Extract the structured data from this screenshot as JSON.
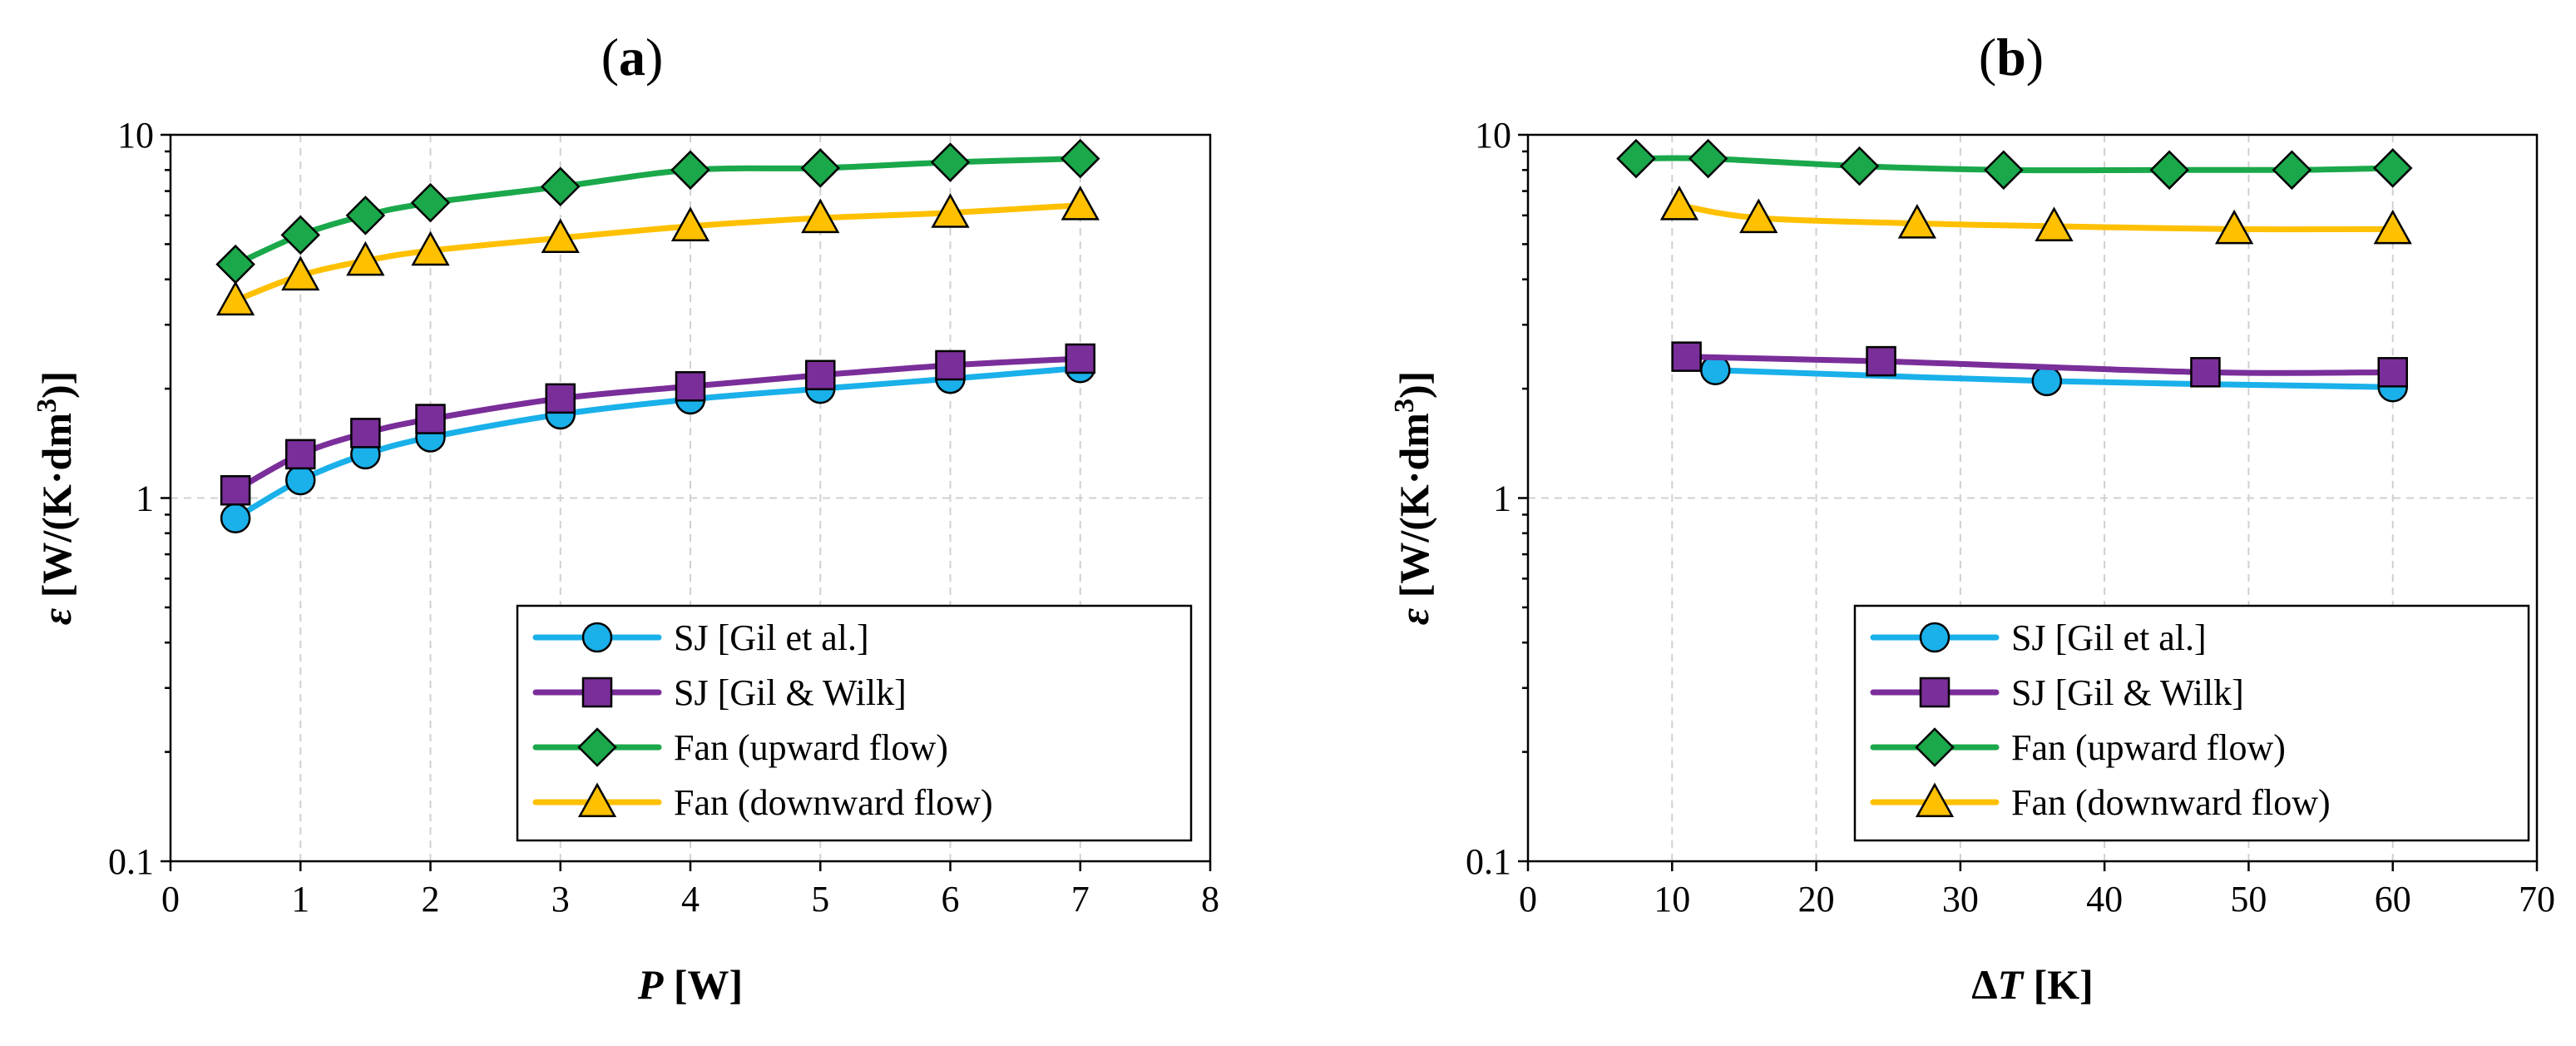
{
  "chart_data": [
    {
      "id": "a",
      "type": "line",
      "panel_label": "a",
      "xlabel_var": "P",
      "xlabel_unit": " [W]",
      "ylabel_var": "ε",
      "ylabel_unit_pre": " [W/(K·dm",
      "ylabel_unit_sup": "3",
      "ylabel_unit_post": ")]",
      "xlim": [
        0,
        8
      ],
      "xticks": [
        0,
        1,
        2,
        3,
        4,
        5,
        6,
        7,
        8
      ],
      "xtick_labels": [
        "0",
        "1",
        "2",
        "3",
        "4",
        "5",
        "6",
        "7",
        "8"
      ],
      "yscale": "log",
      "ylim": [
        0.1,
        10
      ],
      "yticks": [
        0.1,
        1,
        10
      ],
      "ytick_labels": [
        "0.1",
        "1",
        "10"
      ],
      "grid": true,
      "legend_position": "bottom-right",
      "series": [
        {
          "name": "SJ [Gil et al.]",
          "color": "#1ab0ea",
          "marker": "circle",
          "x": [
            0.5,
            1.0,
            1.5,
            2.0,
            3.0,
            4.0,
            5.0,
            6.0,
            7.0
          ],
          "y": [
            0.88,
            1.12,
            1.32,
            1.47,
            1.7,
            1.87,
            2.0,
            2.13,
            2.28
          ]
        },
        {
          "name": "SJ [Gil & Wilk]",
          "color": "#7a2e9a",
          "marker": "square",
          "x": [
            0.5,
            1.0,
            1.5,
            2.0,
            3.0,
            4.0,
            5.0,
            6.0,
            7.0
          ],
          "y": [
            1.05,
            1.32,
            1.51,
            1.65,
            1.88,
            2.03,
            2.18,
            2.32,
            2.42
          ]
        },
        {
          "name": "Fan (upward flow)",
          "color": "#1aa84b",
          "marker": "diamond",
          "x": [
            0.5,
            1.0,
            1.5,
            2.0,
            3.0,
            4.0,
            5.0,
            6.0,
            7.0
          ],
          "y": [
            4.4,
            5.3,
            6.0,
            6.5,
            7.2,
            8.0,
            8.1,
            8.4,
            8.6
          ]
        },
        {
          "name": "Fan (downward flow)",
          "color": "#ffc000",
          "marker": "triangle",
          "x": [
            0.5,
            1.0,
            1.5,
            2.0,
            3.0,
            4.0,
            5.0,
            6.0,
            7.0
          ],
          "y": [
            3.5,
            4.1,
            4.5,
            4.8,
            5.2,
            5.6,
            5.9,
            6.1,
            6.4
          ]
        }
      ]
    },
    {
      "id": "b",
      "type": "line",
      "panel_label": "b",
      "xlabel_var": "ΔT",
      "xlabel_unit": " [K]",
      "ylabel_var": "ε",
      "ylabel_unit_pre": " [W/(K·dm",
      "ylabel_unit_sup": "3",
      "ylabel_unit_post": ")]",
      "xlim": [
        0,
        70
      ],
      "xticks": [
        0,
        10,
        20,
        30,
        40,
        50,
        60,
        70
      ],
      "xtick_labels": [
        "0",
        "10",
        "20",
        "30",
        "40",
        "50",
        "60",
        "70"
      ],
      "yscale": "log",
      "ylim": [
        0.1,
        10
      ],
      "yticks": [
        0.1,
        1,
        10
      ],
      "ytick_labels": [
        "0.1",
        "1",
        "10"
      ],
      "grid": true,
      "legend_position": "bottom-right",
      "series": [
        {
          "name": "SJ [Gil et al.]",
          "color": "#1ab0ea",
          "marker": "circle",
          "x": [
            13,
            36,
            60
          ],
          "y": [
            2.25,
            2.1,
            2.02
          ]
        },
        {
          "name": "SJ [Gil & Wilk]",
          "color": "#7a2e9a",
          "marker": "square",
          "x": [
            11,
            24.5,
            47,
            60
          ],
          "y": [
            2.45,
            2.38,
            2.22,
            2.22
          ]
        },
        {
          "name": "Fan (upward flow)",
          "color": "#1aa84b",
          "marker": "diamond",
          "x": [
            7.5,
            12.5,
            23,
            33,
            44.5,
            53,
            60
          ],
          "y": [
            8.6,
            8.6,
            8.2,
            8.0,
            8.0,
            8.0,
            8.1
          ]
        },
        {
          "name": "Fan (downward flow)",
          "color": "#ffc000",
          "marker": "triangle",
          "x": [
            10.5,
            16,
            27,
            36.5,
            49,
            60
          ],
          "y": [
            6.4,
            5.9,
            5.7,
            5.6,
            5.5,
            5.5
          ]
        }
      ]
    }
  ]
}
